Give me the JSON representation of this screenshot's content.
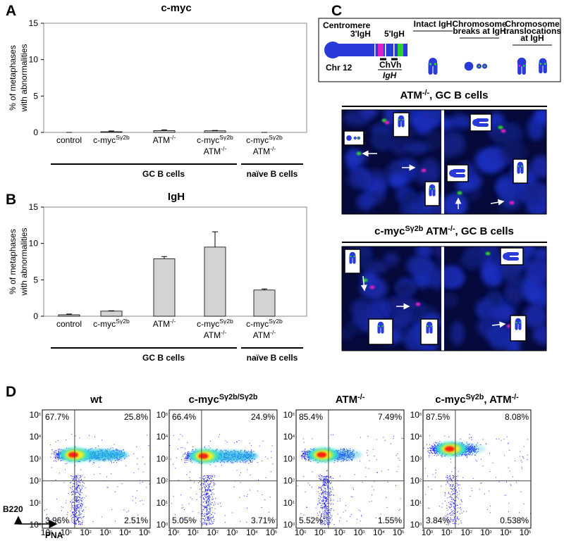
{
  "chart_data": [
    {
      "type": "bar",
      "panel": "A",
      "title": "c-myc",
      "y_label": [
        "% of metaphases",
        "with abnormalities"
      ],
      "categories": [
        [
          [
            {
              "t": "control"
            }
          ]
        ],
        [
          [
            {
              "t": "c-myc",
              "sup": "Sγ2b"
            }
          ]
        ],
        [
          [
            {
              "t": "ATM",
              "sup": "-/-"
            }
          ]
        ],
        [
          [
            {
              "t": "c-myc",
              "sup": "Sγ2b"
            }
          ],
          [
            {
              "t": "ATM",
              "sup": "-/-"
            }
          ]
        ],
        [
          [
            {
              "t": "c-myc",
              "sup": "Sγ2b"
            }
          ],
          [
            {
              "t": "ATM",
              "sup": "-/-"
            }
          ]
        ]
      ],
      "values": [
        0,
        0.1,
        0.25,
        0.22,
        0
      ],
      "errors": [
        0,
        0.1,
        0.1,
        0.05,
        0
      ],
      "color": "#d3d3d3",
      "ylim": [
        0,
        15
      ],
      "yticks": [
        0,
        5,
        10,
        15
      ],
      "group_labels": [
        "GC B cells",
        "naïve B cells"
      ]
    },
    {
      "type": "bar",
      "panel": "B",
      "title": "IgH",
      "y_label": [
        "% of metaphases",
        "with abnormalities"
      ],
      "categories": [
        [
          [
            {
              "t": "control"
            }
          ]
        ],
        [
          [
            {
              "t": "c-myc",
              "sup": "Sγ2b"
            }
          ]
        ],
        [
          [
            {
              "t": "ATM",
              "sup": "-/-"
            }
          ]
        ],
        [
          [
            {
              "t": "c-myc",
              "sup": "Sγ2b"
            }
          ],
          [
            {
              "t": "ATM",
              "sup": "-/-"
            }
          ]
        ],
        [
          [
            {
              "t": "c-myc",
              "sup": "Sγ2b"
            }
          ],
          [
            {
              "t": "ATM",
              "sup": "-/-"
            }
          ]
        ]
      ],
      "values": [
        0.2,
        0.7,
        7.9,
        9.5,
        3.6
      ],
      "errors": [
        0.1,
        0.05,
        0.3,
        2.1,
        0.15
      ],
      "color": "#d3d3d3",
      "ylim": [
        0,
        15
      ],
      "yticks": [
        0,
        5,
        10,
        15
      ],
      "group_labels": [
        "GC B cells",
        "naïve B cells"
      ]
    }
  ],
  "panel_c": {
    "label": "C",
    "diagram": {
      "centromere": "Centromere",
      "probe_3": "3'IgH",
      "probe_5": "5'IgH",
      "chromosome": "Chr 12",
      "ch": "Ch",
      "vh": "Vh",
      "igh": "IgH",
      "states": [
        [
          "Intact IgH"
        ],
        [
          "Chromosome",
          "breaks at IgH"
        ],
        [
          "Chromosome",
          "translocations",
          "at IgH"
        ]
      ]
    },
    "images": [
      {
        "title": [
          {
            "t": "ATM",
            "sup": "-/-"
          },
          {
            "t": ", GC B cells"
          }
        ]
      },
      {
        "title": [
          {
            "t": "c-myc",
            "sup": "Sγ2b"
          },
          {
            "t": " ATM",
            "sup": "-/-"
          },
          {
            "t": ", GC B cells"
          }
        ]
      }
    ]
  },
  "panel_d": {
    "label": "D",
    "y_axis": "B220",
    "x_axis": "PNA",
    "tick_base": "10",
    "tick_exponents": [
      "0",
      "1",
      "2",
      "3",
      "4",
      "5"
    ],
    "plots": [
      {
        "title": [
          {
            "t": "wt"
          }
        ],
        "quadrants": [
          "67.7%",
          "25.8%",
          "3.96%",
          "2.51%"
        ]
      },
      {
        "title": [
          {
            "t": "c-myc",
            "sup": "Sγ2b/Sγ2b"
          }
        ],
        "quadrants": [
          "66.4%",
          "24.9%",
          "5.05%",
          "3.71%"
        ]
      },
      {
        "title": [
          {
            "t": "ATM",
            "sup": "-/-"
          }
        ],
        "quadrants": [
          "85.4%",
          "7.49%",
          "5.52%",
          "1.55%"
        ]
      },
      {
        "title": [
          {
            "t": "c-myc",
            "sup": "Sγ2b"
          },
          {
            "t": ", ATM",
            "sup": "-/-"
          }
        ],
        "quadrants": [
          "87.5%",
          "8.08%",
          "3.84%",
          "0.538%"
        ]
      }
    ]
  }
}
